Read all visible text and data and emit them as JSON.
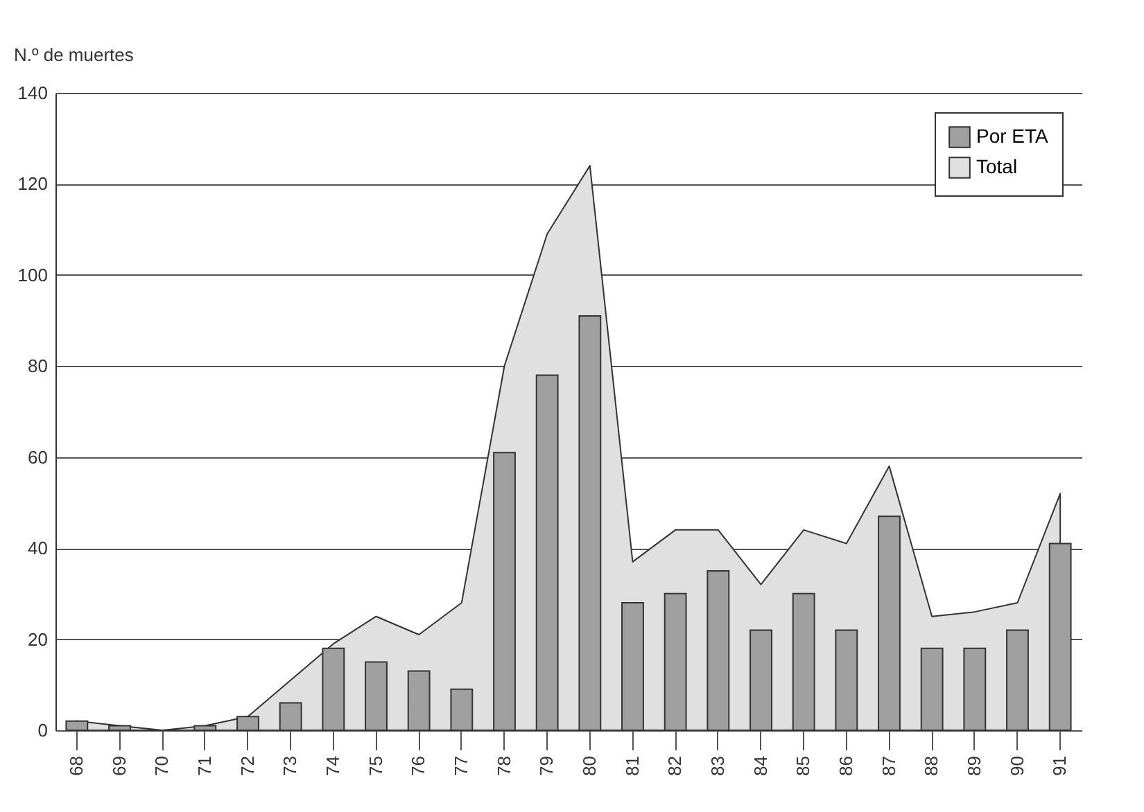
{
  "chart_data": {
    "type": "bar",
    "ylabel": "N.º de muertes",
    "categories": [
      "68",
      "69",
      "70",
      "71",
      "72",
      "73",
      "74",
      "75",
      "76",
      "77",
      "78",
      "79",
      "80",
      "81",
      "82",
      "83",
      "84",
      "85",
      "86",
      "87",
      "88",
      "89",
      "90",
      "91"
    ],
    "series": [
      {
        "name": "Por ETA",
        "color": "#a0a0a0",
        "values": [
          2,
          1,
          0,
          1,
          3,
          6,
          18,
          15,
          13,
          9,
          61,
          78,
          91,
          28,
          30,
          35,
          22,
          30,
          22,
          47,
          18,
          18,
          22,
          41
        ]
      },
      {
        "name": "Total",
        "type": "area",
        "color": "#e0e0e0",
        "values": [
          2,
          1,
          0,
          1,
          3,
          11,
          19,
          25,
          21,
          28,
          80,
          109,
          124,
          37,
          44,
          44,
          32,
          44,
          41,
          58,
          25,
          26,
          28,
          52
        ]
      }
    ],
    "ylim": [
      0,
      140
    ],
    "yticks": [
      0,
      20,
      40,
      60,
      80,
      100,
      120,
      140
    ],
    "grid": "y",
    "legend": "top right"
  }
}
